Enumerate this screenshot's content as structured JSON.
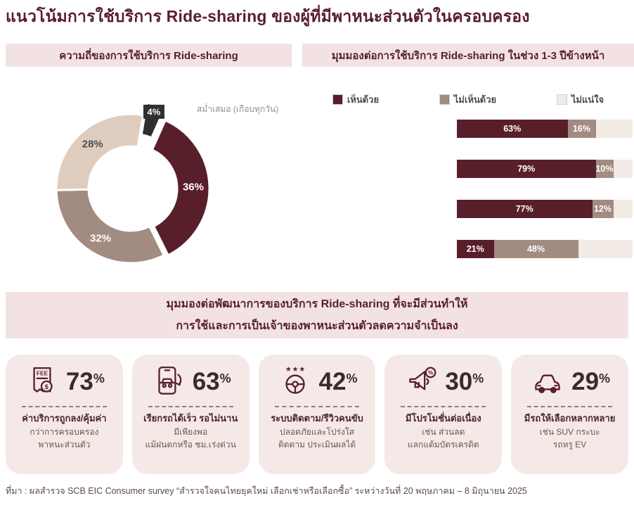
{
  "page": {
    "title": "แนวโน้มการใช้บริการ Ride-sharing ของผู้ที่มีพาหนะส่วนตัวในครอบครอง"
  },
  "panels": {
    "left_header": "ความถี่ของการใช้บริการ Ride-sharing",
    "right_header": "มุมมองต่อการใช้บริการ Ride-sharing ในช่วง 1-3 ปีข้างหน้า"
  },
  "colors": {
    "accent_maroon": "#581F2B",
    "taupe": "#A28B80",
    "beige": "#DECDBF",
    "dark_gray": "#2F2F2F",
    "panel_bg": "#F2E3E2",
    "card_bg": "#F5E9E8"
  },
  "chart_data": [
    {
      "type": "pie",
      "donut": true,
      "title": "ความถี่ของการใช้บริการ Ride-sharing",
      "slices": [
        {
          "label": "36%",
          "value": 36,
          "color": "#581F2B",
          "text_color": "#ffffff",
          "explode": 6
        },
        {
          "label": "32%",
          "value": 32,
          "color": "#A28B80",
          "text_color": "#ffffff",
          "explode": 0
        },
        {
          "label": "28%",
          "value": 28,
          "color": "#DECDBF",
          "text_color": "#4c4c4c",
          "explode": 0
        },
        {
          "label": "4%",
          "value": 4,
          "color": "#2F2F2F",
          "text_color": "#ffffff",
          "explode": 18
        }
      ],
      "annotation": "สม่ำเสมอ (เกือบทุกวัน)"
    },
    {
      "type": "bar",
      "stacked": true,
      "orientation": "horizontal",
      "title": "มุมมองต่อการใช้บริการ Ride-sharing ในช่วง 1-3 ปีข้างหน้า",
      "legend": [
        {
          "label": "เห็นด้วย",
          "color": "#581F2B"
        },
        {
          "label": "ไม่เห็นด้วย",
          "color": "#A28B80"
        },
        {
          "label": "ไม่แน่ใจ",
          "color": "#F2EAE4"
        }
      ],
      "rows": [
        {
          "series": [
            63,
            16,
            21
          ]
        },
        {
          "series": [
            79,
            10,
            11
          ]
        },
        {
          "series": [
            77,
            12,
            11
          ]
        },
        {
          "series": [
            21,
            48,
            31
          ]
        }
      ],
      "xlim": [
        0,
        100
      ],
      "shown_labels": [
        [
          "63%",
          "16%"
        ],
        [
          "79%",
          "10%"
        ],
        [
          "77%",
          "12%"
        ],
        [
          "21%",
          "48%"
        ]
      ]
    }
  ],
  "banner": {
    "line1": "มุมมองต่อพัฒนาการของบริการ Ride-sharing ที่จะมีส่วนทำให้",
    "line2": "การใช้และการเป็นเจ้าของพาหนะส่วนตัวลดความจำเป็นลง"
  },
  "cards": [
    {
      "icon": "receipt-fee-icon",
      "value": "73",
      "unit": "%",
      "lines": [
        "ค่าบริการถูกลง/คุ้มค่า",
        "กว่าการครอบครอง",
        "พาหนะส่วนตัว"
      ]
    },
    {
      "icon": "phone-car-icon",
      "value": "63",
      "unit": "%",
      "lines": [
        "เรียกรถได้เร็ว รอไม่นาน",
        "มีเพียงพอ",
        "แม้ฝนตกหรือ ชม.เร่งด่วน"
      ]
    },
    {
      "icon": "steering-wheel-stars-icon",
      "value": "42",
      "unit": "%",
      "lines": [
        "ระบบติดตาม/รีวิวคนขับ",
        "ปลอดภัยและโปร่งใส",
        "ติดตาม ประเมินผลได้"
      ]
    },
    {
      "icon": "megaphone-icon",
      "value": "30",
      "unit": "%",
      "lines": [
        "มีโปรโมชั่นต่อเนื่อง",
        "เช่น ส่วนลด",
        "แลกแต้มบัตรเครดิต"
      ]
    },
    {
      "icon": "car-icon",
      "value": "29",
      "unit": "%",
      "lines": [
        "มีรถให้เลือกหลากหลาย",
        "เช่น SUV กระบะ",
        "รถหรู EV"
      ]
    }
  ],
  "footer": {
    "text": "ที่มา : ผลสำรวจ SCB EIC Consumer survey “สำรวจใจคนไทยยุคใหม่ เลือกเช่าหรือเลือกซื้อ” ระหว่างวันที่ 20 พฤษภาคม – 8 มิถุนายน 2025"
  }
}
